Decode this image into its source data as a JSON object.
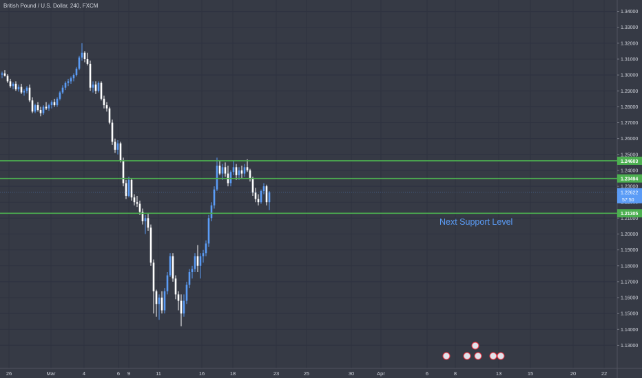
{
  "symbol_title": "British Pound / U.S. Dollar, 240, FXCM",
  "colors": {
    "background": "#363a45",
    "grid": "#2e3240",
    "up_candle": "#5b9cf6",
    "down_candle": "#ffffff",
    "level_line": "#4caf50",
    "level_label_bg": "#4caf50",
    "price_label_bg": "#5b9cf6",
    "axis_text": "#d1d4dc",
    "annotation_text": "#5b9cf6"
  },
  "chart_data": {
    "type": "candlestick",
    "title": "British Pound / U.S. Dollar, 240, FXCM",
    "grid": true,
    "y_axis_position": "right",
    "ylim": [
      1.125,
      1.345
    ],
    "y_ticks": [
      "1.34000",
      "1.33000",
      "1.32000",
      "1.31000",
      "1.30000",
      "1.29000",
      "1.28000",
      "1.27000",
      "1.26000",
      "1.25000",
      "1.24000",
      "1.23000",
      "1.22000",
      "1.21000",
      "1.20000",
      "1.19000",
      "1.18000",
      "1.17000",
      "1.16000",
      "1.15000",
      "1.14000",
      "1.13000"
    ],
    "x_ticks": [
      "26",
      "Mar",
      "4",
      "6",
      "9",
      "11",
      "16",
      "18",
      "23",
      "25",
      "30",
      "Apr",
      "6",
      "8",
      "13",
      "15",
      "20",
      "22"
    ],
    "horizontal_levels": [
      {
        "label": "1.24603",
        "value": 1.24603
      },
      {
        "label": "1.23494",
        "value": 1.23494
      },
      {
        "label": "1.21305",
        "value": 1.21305
      }
    ],
    "last_price": {
      "label": "1.22622",
      "value": 1.22622
    },
    "countdown": "57:50",
    "annotations": [
      {
        "text": "Next Support Level"
      }
    ],
    "candles": [
      [
        1.3002,
        1.3021,
        1.298,
        1.301
      ],
      [
        1.301,
        1.303,
        1.299,
        1.2995
      ],
      [
        1.2995,
        1.3005,
        1.295,
        1.296
      ],
      [
        1.296,
        1.2975,
        1.292,
        1.293
      ],
      [
        1.293,
        1.2955,
        1.291,
        1.2945
      ],
      [
        1.2945,
        1.296,
        1.29,
        1.291
      ],
      [
        1.291,
        1.294,
        1.2895,
        1.2925
      ],
      [
        1.2925,
        1.2945,
        1.288,
        1.289
      ],
      [
        1.289,
        1.291,
        1.287,
        1.29
      ],
      [
        1.29,
        1.293,
        1.2885,
        1.292
      ],
      [
        1.292,
        1.294,
        1.283,
        1.284
      ],
      [
        1.284,
        1.286,
        1.276,
        1.277
      ],
      [
        1.277,
        1.282,
        1.276,
        1.281
      ],
      [
        1.281,
        1.283,
        1.277,
        1.278
      ],
      [
        1.278,
        1.28,
        1.274,
        1.276
      ],
      [
        1.276,
        1.281,
        1.275,
        1.28
      ],
      [
        1.28,
        1.283,
        1.278,
        1.279
      ],
      [
        1.279,
        1.282,
        1.2775,
        1.281
      ],
      [
        1.281,
        1.284,
        1.279,
        1.283
      ],
      [
        1.283,
        1.285,
        1.28,
        1.281
      ],
      [
        1.281,
        1.286,
        1.28,
        1.285
      ],
      [
        1.285,
        1.29,
        1.284,
        1.289
      ],
      [
        1.289,
        1.2935,
        1.288,
        1.292
      ],
      [
        1.292,
        1.296,
        1.2905,
        1.295
      ],
      [
        1.295,
        1.2975,
        1.293,
        1.296
      ],
      [
        1.296,
        1.299,
        1.2945,
        1.298
      ],
      [
        1.298,
        1.301,
        1.296,
        1.3
      ],
      [
        1.3,
        1.305,
        1.299,
        1.304
      ],
      [
        1.304,
        1.312,
        1.303,
        1.311
      ],
      [
        1.311,
        1.32,
        1.309,
        1.314
      ],
      [
        1.314,
        1.315,
        1.308,
        1.31
      ],
      [
        1.31,
        1.314,
        1.306,
        1.307
      ],
      [
        1.307,
        1.309,
        1.29,
        1.292
      ],
      [
        1.292,
        1.296,
        1.289,
        1.294
      ],
      [
        1.294,
        1.296,
        1.288,
        1.29
      ],
      [
        1.29,
        1.296,
        1.289,
        1.295
      ],
      [
        1.295,
        1.296,
        1.284,
        1.285
      ],
      [
        1.285,
        1.287,
        1.279,
        1.281
      ],
      [
        1.281,
        1.283,
        1.277,
        1.279
      ],
      [
        1.279,
        1.28,
        1.269,
        1.27
      ],
      [
        1.27,
        1.272,
        1.256,
        1.258
      ],
      [
        1.258,
        1.26,
        1.251,
        1.253
      ],
      [
        1.253,
        1.259,
        1.25,
        1.257
      ],
      [
        1.257,
        1.258,
        1.245,
        1.246
      ],
      [
        1.246,
        1.248,
        1.23,
        1.232
      ],
      [
        1.232,
        1.234,
        1.222,
        1.224
      ],
      [
        1.224,
        1.236,
        1.223,
        1.234
      ],
      [
        1.234,
        1.235,
        1.221,
        1.223
      ],
      [
        1.223,
        1.225,
        1.218,
        1.22
      ],
      [
        1.22,
        1.224,
        1.217,
        1.219
      ],
      [
        1.219,
        1.221,
        1.212,
        1.214
      ],
      [
        1.214,
        1.216,
        1.206,
        1.208
      ],
      [
        1.208,
        1.212,
        1.2,
        1.21
      ],
      [
        1.21,
        1.213,
        1.202,
        1.204
      ],
      [
        1.204,
        1.206,
        1.18,
        1.182
      ],
      [
        1.182,
        1.184,
        1.15,
        1.164
      ],
      [
        1.164,
        1.165,
        1.148,
        1.156
      ],
      [
        1.156,
        1.162,
        1.146,
        1.16
      ],
      [
        1.16,
        1.164,
        1.15,
        1.152
      ],
      [
        1.152,
        1.166,
        1.15,
        1.164
      ],
      [
        1.164,
        1.176,
        1.162,
        1.174
      ],
      [
        1.174,
        1.188,
        1.173,
        1.186
      ],
      [
        1.186,
        1.188,
        1.17,
        1.172
      ],
      [
        1.172,
        1.174,
        1.159,
        1.162
      ],
      [
        1.162,
        1.164,
        1.152,
        1.158
      ],
      [
        1.158,
        1.162,
        1.142,
        1.15
      ],
      [
        1.15,
        1.162,
        1.148,
        1.158
      ],
      [
        1.158,
        1.17,
        1.156,
        1.168
      ],
      [
        1.168,
        1.178,
        1.166,
        1.176
      ],
      [
        1.176,
        1.18,
        1.172,
        1.178
      ],
      [
        1.178,
        1.188,
        1.176,
        1.186
      ],
      [
        1.186,
        1.193,
        1.176,
        1.18
      ],
      [
        1.18,
        1.188,
        1.172,
        1.186
      ],
      [
        1.186,
        1.19,
        1.182,
        1.188
      ],
      [
        1.188,
        1.196,
        1.186,
        1.194
      ],
      [
        1.194,
        1.212,
        1.192,
        1.21
      ],
      [
        1.21,
        1.22,
        1.208,
        1.218
      ],
      [
        1.218,
        1.23,
        1.216,
        1.228
      ],
      [
        1.228,
        1.248,
        1.227,
        1.243
      ],
      [
        1.243,
        1.246,
        1.237,
        1.238
      ],
      [
        1.238,
        1.244,
        1.234,
        1.242
      ],
      [
        1.242,
        1.245,
        1.236,
        1.238
      ],
      [
        1.238,
        1.243,
        1.23,
        1.232
      ],
      [
        1.232,
        1.24,
        1.23,
        1.239
      ],
      [
        1.239,
        1.246,
        1.237,
        1.242
      ],
      [
        1.242,
        1.244,
        1.234,
        1.237
      ],
      [
        1.237,
        1.242,
        1.234,
        1.24
      ],
      [
        1.24,
        1.243,
        1.235,
        1.238
      ],
      [
        1.238,
        1.244,
        1.236,
        1.242
      ],
      [
        1.242,
        1.247,
        1.239,
        1.24
      ],
      [
        1.24,
        1.241,
        1.233,
        1.235
      ],
      [
        1.235,
        1.236,
        1.224,
        1.226
      ],
      [
        1.226,
        1.229,
        1.22,
        1.222
      ],
      [
        1.222,
        1.225,
        1.218,
        1.22
      ],
      [
        1.22,
        1.228,
        1.219,
        1.227
      ],
      [
        1.227,
        1.232,
        1.225,
        1.23
      ],
      [
        1.23,
        1.231,
        1.218,
        1.22
      ],
      [
        1.22,
        1.227,
        1.215,
        1.2262
      ]
    ]
  }
}
